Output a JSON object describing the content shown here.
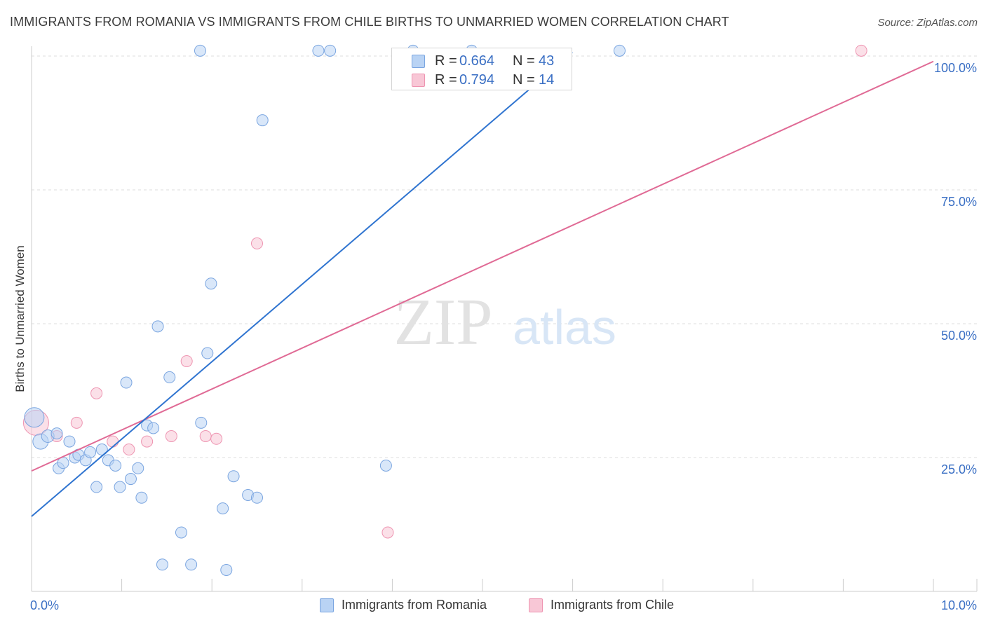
{
  "title": "IMMIGRANTS FROM ROMANIA VS IMMIGRANTS FROM CHILE BIRTHS TO UNMARRIED WOMEN CORRELATION CHART",
  "source": "Source: ZipAtlas.com",
  "watermark": {
    "zip": "ZIP",
    "atlas": "atlas"
  },
  "legend_top": {
    "rows": [
      {
        "r_label": "R = ",
        "r_value": "0.664",
        "n_label": "N = ",
        "n_value": "43"
      },
      {
        "r_label": "R = ",
        "r_value": "0.794",
        "n_label": "N = ",
        "n_value": "14"
      }
    ]
  },
  "legend_bottom": [
    "Immigrants from Romania",
    "Immigrants from Chile"
  ],
  "colors": {
    "romania_fill": "#b9d3f4",
    "romania_stroke": "#7aa5e0",
    "romania_line": "#2f74d0",
    "chile_fill": "#f8c7d6",
    "chile_stroke": "#ee94b1",
    "chile_line": "#e06a95",
    "grid": "#dddddd",
    "tick_label": "#3a6fc4"
  },
  "chart_data": {
    "type": "scatter",
    "title": "IMMIGRANTS FROM ROMANIA VS IMMIGRANTS FROM CHILE BIRTHS TO UNMARRIED WOMEN CORRELATION CHART",
    "xlabel": "",
    "ylabel": "Births to Unmarried Women",
    "xlim": [
      0,
      10
    ],
    "ylim": [
      0,
      102
    ],
    "x_tick_labels": [
      {
        "value": 0,
        "label": "0.0%"
      },
      {
        "value": 10,
        "label": "10.0%"
      }
    ],
    "y_tick_labels": [
      {
        "value": 25,
        "label": "25.0%"
      },
      {
        "value": 50,
        "label": "50.0%"
      },
      {
        "value": 75,
        "label": "75.0%"
      },
      {
        "value": 100,
        "label": "100.0%"
      }
    ],
    "x_minor_ticks": [
      1,
      2,
      3,
      4,
      5,
      6,
      7,
      8,
      9,
      10
    ],
    "grid": true,
    "series": [
      {
        "name": "Immigrants from Romania",
        "R": 0.664,
        "N": 43,
        "trend": {
          "x0": 0,
          "y0": 14.0,
          "x1": 5.95,
          "y1": 100.0
        },
        "points": [
          {
            "x": 0.03,
            "y": 32.5,
            "r": 14
          },
          {
            "x": 0.1,
            "y": 28.0,
            "r": 11
          },
          {
            "x": 0.18,
            "y": 29.0,
            "r": 9
          },
          {
            "x": 0.28,
            "y": 29.5,
            "r": 8
          },
          {
            "x": 0.3,
            "y": 23.0,
            "r": 8
          },
          {
            "x": 0.35,
            "y": 24.0,
            "r": 8
          },
          {
            "x": 0.42,
            "y": 28.0,
            "r": 8
          },
          {
            "x": 0.48,
            "y": 25.0,
            "r": 8
          },
          {
            "x": 0.52,
            "y": 25.5,
            "r": 8
          },
          {
            "x": 0.6,
            "y": 24.5,
            "r": 8
          },
          {
            "x": 0.65,
            "y": 26.0,
            "r": 8
          },
          {
            "x": 0.72,
            "y": 19.5,
            "r": 8
          },
          {
            "x": 0.78,
            "y": 26.5,
            "r": 8
          },
          {
            "x": 0.85,
            "y": 24.5,
            "r": 8
          },
          {
            "x": 0.93,
            "y": 23.5,
            "r": 8
          },
          {
            "x": 0.98,
            "y": 19.5,
            "r": 8
          },
          {
            "x": 1.05,
            "y": 39.0,
            "r": 8
          },
          {
            "x": 1.1,
            "y": 21.0,
            "r": 8
          },
          {
            "x": 1.18,
            "y": 23.0,
            "r": 8
          },
          {
            "x": 1.22,
            "y": 17.5,
            "r": 8
          },
          {
            "x": 1.28,
            "y": 31.0,
            "r": 8
          },
          {
            "x": 1.35,
            "y": 30.5,
            "r": 8
          },
          {
            "x": 1.4,
            "y": 49.5,
            "r": 8
          },
          {
            "x": 1.45,
            "y": 5.0,
            "r": 8
          },
          {
            "x": 1.53,
            "y": 40.0,
            "r": 8
          },
          {
            "x": 1.66,
            "y": 11.0,
            "r": 8
          },
          {
            "x": 1.77,
            "y": 5.0,
            "r": 8
          },
          {
            "x": 1.88,
            "y": 31.5,
            "r": 8
          },
          {
            "x": 1.95,
            "y": 44.5,
            "r": 8
          },
          {
            "x": 1.99,
            "y": 57.5,
            "r": 8
          },
          {
            "x": 2.12,
            "y": 15.5,
            "r": 8
          },
          {
            "x": 2.16,
            "y": 4.0,
            "r": 8
          },
          {
            "x": 2.24,
            "y": 21.5,
            "r": 8
          },
          {
            "x": 2.4,
            "y": 18.0,
            "r": 8
          },
          {
            "x": 2.5,
            "y": 17.5,
            "r": 8
          },
          {
            "x": 2.56,
            "y": 88.0,
            "r": 8
          },
          {
            "x": 3.93,
            "y": 23.5,
            "r": 8
          },
          {
            "x": 1.87,
            "y": 101.0,
            "r": 8
          },
          {
            "x": 3.18,
            "y": 101.0,
            "r": 8
          },
          {
            "x": 3.31,
            "y": 101.0,
            "r": 8
          },
          {
            "x": 4.23,
            "y": 101.0,
            "r": 8
          },
          {
            "x": 4.88,
            "y": 101.0,
            "r": 8
          },
          {
            "x": 6.52,
            "y": 101.0,
            "r": 8
          }
        ]
      },
      {
        "name": "Immigrants from Chile",
        "R": 0.794,
        "N": 14,
        "trend": {
          "x0": 0,
          "y0": 22.5,
          "x1": 10,
          "y1": 99.0
        },
        "points": [
          {
            "x": 0.05,
            "y": 31.5,
            "r": 18
          },
          {
            "x": 0.28,
            "y": 29.0,
            "r": 8
          },
          {
            "x": 0.5,
            "y": 31.5,
            "r": 8
          },
          {
            "x": 0.72,
            "y": 37.0,
            "r": 8
          },
          {
            "x": 0.9,
            "y": 28.0,
            "r": 8
          },
          {
            "x": 1.08,
            "y": 26.5,
            "r": 8
          },
          {
            "x": 1.28,
            "y": 28.0,
            "r": 8
          },
          {
            "x": 1.55,
            "y": 29.0,
            "r": 8
          },
          {
            "x": 1.72,
            "y": 43.0,
            "r": 8
          },
          {
            "x": 1.93,
            "y": 29.0,
            "r": 8
          },
          {
            "x": 2.05,
            "y": 28.5,
            "r": 8
          },
          {
            "x": 2.5,
            "y": 65.0,
            "r": 8
          },
          {
            "x": 3.95,
            "y": 11.0,
            "r": 8
          },
          {
            "x": 9.2,
            "y": 101.0,
            "r": 8
          }
        ]
      }
    ]
  }
}
